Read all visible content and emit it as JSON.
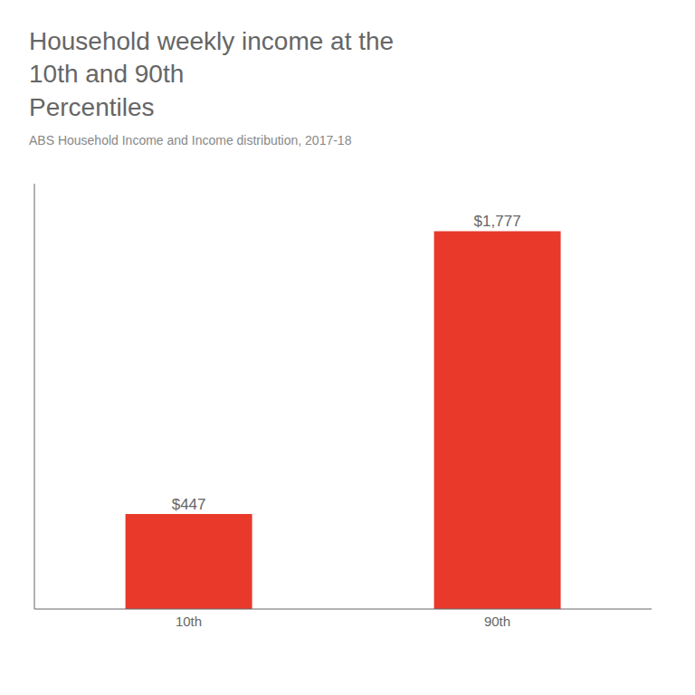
{
  "chart_data": {
    "type": "bar",
    "title": "Household weekly income at the\n10th and 90th\nPercentiles",
    "subtitle": "ABS Household Income and Income distribution, 2017-18",
    "categories": [
      "10th",
      "90th"
    ],
    "values": [
      447,
      1777
    ],
    "value_labels": [
      "$447",
      "$1,777"
    ],
    "data_labels": true,
    "color": "#e8392a",
    "ylim": [
      0,
      2000
    ],
    "tick_labels": "x"
  }
}
